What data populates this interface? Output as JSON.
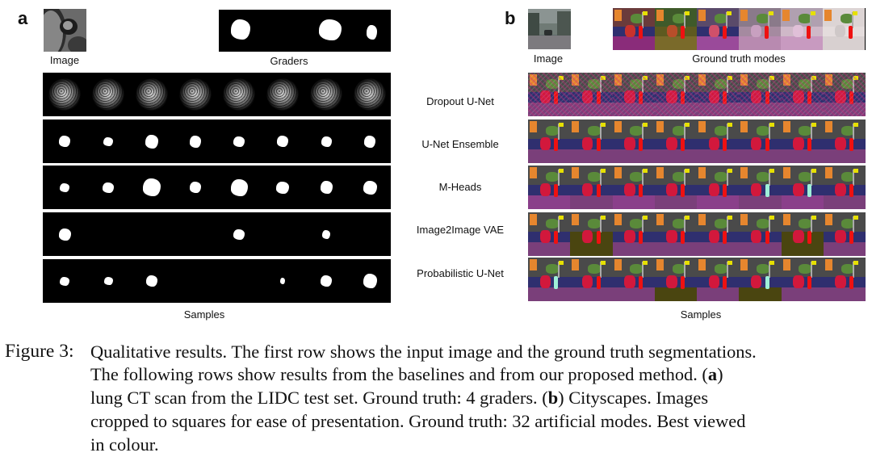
{
  "panel_a": {
    "letter": "a",
    "image_label": "Image",
    "graders_label": "Graders",
    "samples_label": "Samples"
  },
  "panel_b": {
    "letter": "b",
    "image_label": "Image",
    "ground_truth_label": "Ground truth modes",
    "samples_label": "Samples"
  },
  "methods": [
    "Dropout  U-Net",
    "U-Net Ensemble",
    "M-Heads",
    "Image2Image VAE",
    "Probabilistic U-Net"
  ],
  "caption": {
    "lead": "Figure 3:",
    "lines": [
      "Qualitative results. The first row shows the input image and the ground truth segmentations.",
      "The following rows show results from the baselines and from our proposed method. (",
      "lung CT scan from the LIDC test set. Ground truth: 4 graders. (",
      "cropped to squares for ease of presentation. Ground truth: 32 artificial modes. Best viewed",
      "in colour."
    ],
    "bold_a": "a",
    "bold_b": "b",
    "line2_tail": ")",
    "line3_tail": ") Cityscapes. Images"
  },
  "colors": {
    "road": "#7a3f7a",
    "sidewalk": "#c23fc8",
    "car": "#d2183c",
    "person": "#ee1111",
    "sky_building": "#4a4a4a",
    "vegetation": "#5a8a3a",
    "dark_road": "#4a4510"
  }
}
